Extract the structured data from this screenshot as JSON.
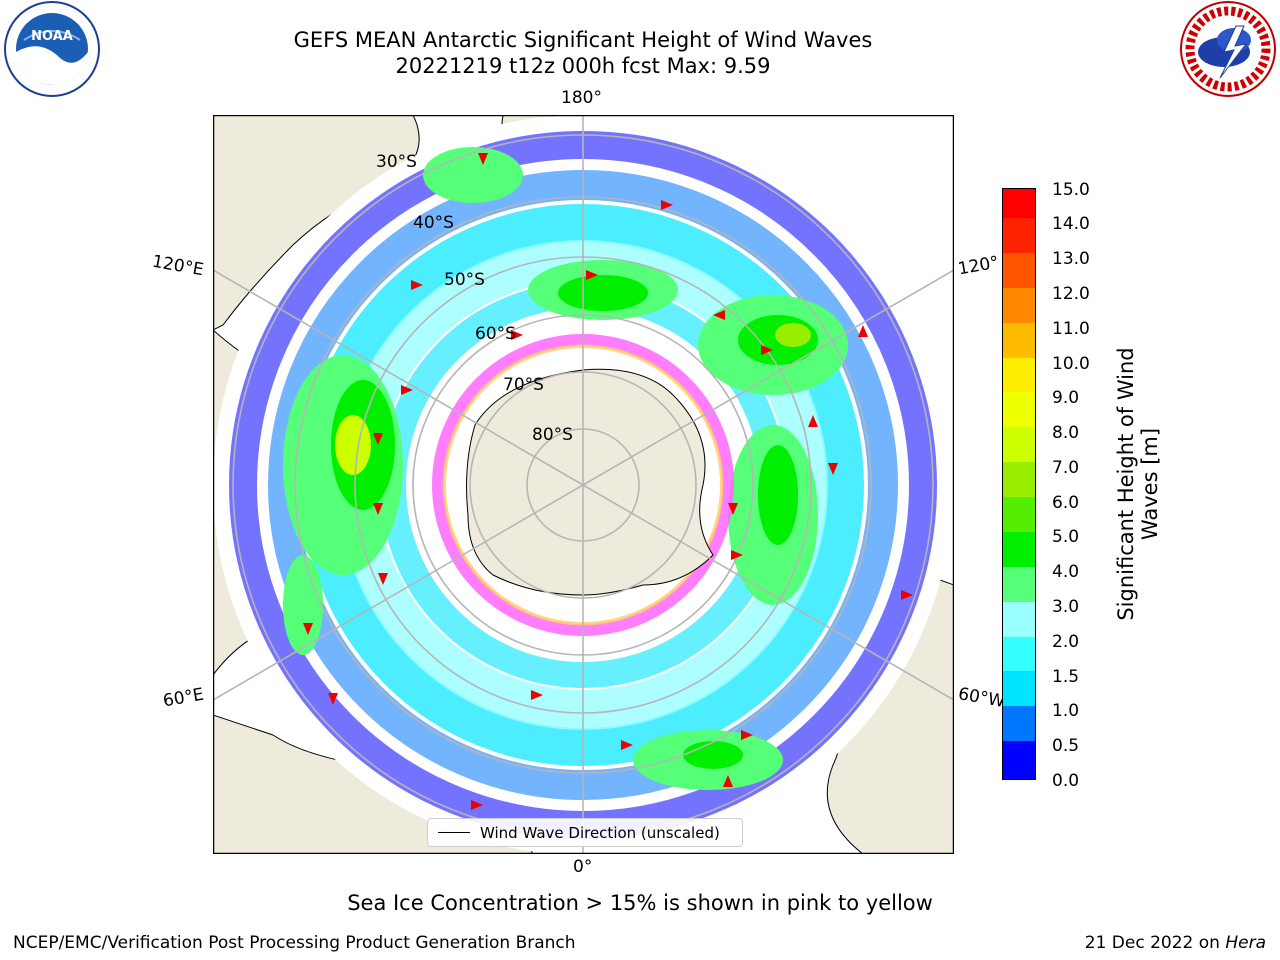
{
  "header": {
    "title_line1": "GEFS MEAN Antarctic Significant Height of Wind Waves",
    "title_line2": "20221219 t12z 000h fcst   Max: 9.59"
  },
  "logos": {
    "left": {
      "name": "noaa-logo",
      "text": "NOAA"
    },
    "right": {
      "name": "nws-logo",
      "ring_text": "NATIONAL WEATHER SERVICE"
    }
  },
  "map": {
    "projection": "south-polar-stereographic",
    "lat_labels": [
      "30°S",
      "40°S",
      "50°S",
      "60°S",
      "70°S",
      "80°S"
    ],
    "lon_labels": {
      "top": "180°",
      "bottom": "0°",
      "left_upper": "120°E",
      "left_lower": "60°E",
      "right_upper": "120°",
      "right_lower": "60°W"
    },
    "legend_label": "Wind Wave Direction (unscaled)",
    "land_color": "#efebdc",
    "ice_colors": [
      "#ff66ff",
      "#ff9966",
      "#ffcc66",
      "#ffff99"
    ]
  },
  "colorbar": {
    "label_line1": "Significant Height of Wind",
    "label_line2": "Waves [m]",
    "ticks": [
      "15.0",
      "14.0",
      "13.0",
      "12.0",
      "11.0",
      "10.0",
      "9.0",
      "8.0",
      "7.0",
      "6.0",
      "5.0",
      "4.0",
      "3.0",
      "2.0",
      "1.5",
      "1.0",
      "0.5",
      "0.0"
    ],
    "colors_bottom_to_top": [
      "#0000ff",
      "#0077ff",
      "#00e5ff",
      "#33ffff",
      "#99ffff",
      "#55ff77",
      "#00ee00",
      "#55ee00",
      "#99ee00",
      "#ccff00",
      "#eeff00",
      "#ffee00",
      "#ffbb00",
      "#ff8800",
      "#ff5500",
      "#ff2200",
      "#ff0000"
    ]
  },
  "caption": "Sea Ice Concentration > 15% is shown in pink to yellow",
  "footer": {
    "left": "NCEP/EMC/Verification Post Processing Product Generation Branch",
    "right_prefix": "21 Dec 2022 on ",
    "right_host": "Hera"
  }
}
